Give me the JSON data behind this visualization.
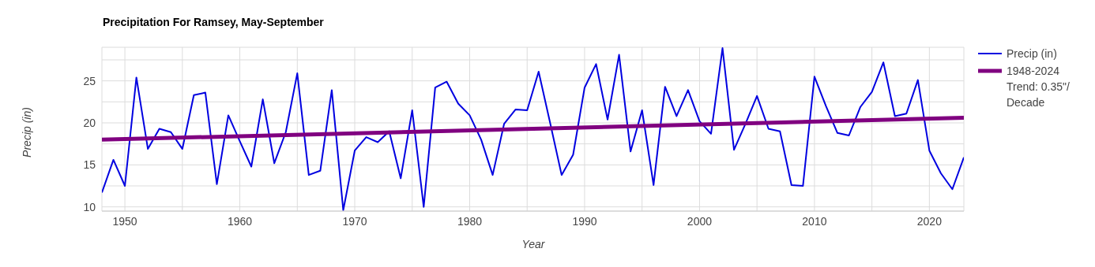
{
  "chart_data": {
    "type": "line",
    "title": "Precipitation For Ramsey, May-September",
    "xlabel": "Year",
    "ylabel": "Precip (in)",
    "x": [
      1948,
      1949,
      1950,
      1951,
      1952,
      1953,
      1954,
      1955,
      1956,
      1957,
      1958,
      1959,
      1960,
      1961,
      1962,
      1963,
      1964,
      1965,
      1966,
      1967,
      1968,
      1969,
      1970,
      1971,
      1972,
      1973,
      1974,
      1975,
      1976,
      1977,
      1978,
      1979,
      1980,
      1981,
      1982,
      1983,
      1984,
      1985,
      1986,
      1987,
      1988,
      1989,
      1990,
      1991,
      1992,
      1993,
      1994,
      1995,
      1996,
      1997,
      1998,
      1999,
      2000,
      2001,
      2002,
      2003,
      2004,
      2005,
      2006,
      2007,
      2008,
      2009,
      2010,
      2011,
      2012,
      2013,
      2014,
      2015,
      2016,
      2017,
      2018,
      2019,
      2020,
      2021,
      2022,
      2023
    ],
    "series": [
      {
        "name": "Precip (in)",
        "color": "#0000e0",
        "values": [
          11.7,
          15.6,
          12.5,
          25.4,
          16.9,
          19.3,
          18.9,
          16.9,
          23.3,
          23.6,
          12.7,
          20.9,
          17.8,
          14.8,
          22.8,
          15.2,
          18.9,
          25.9,
          13.8,
          14.3,
          23.9,
          9.6,
          16.7,
          18.3,
          17.7,
          19.0,
          13.4,
          21.5,
          10.0,
          24.2,
          24.9,
          22.3,
          20.9,
          18.0,
          13.8,
          19.9,
          21.6,
          21.5,
          26.1,
          20.0,
          13.8,
          16.2,
          24.2,
          27.0,
          20.4,
          28.1,
          16.6,
          21.5,
          12.6,
          24.3,
          20.8,
          23.9,
          20.2,
          18.7,
          28.9,
          16.8,
          19.9,
          23.2,
          19.3,
          19.0,
          12.6,
          12.5,
          25.5,
          22.0,
          18.8,
          18.5,
          21.9,
          23.7,
          27.2,
          20.8,
          21.1,
          25.1,
          16.7,
          14.0,
          12.1,
          15.9
        ]
      },
      {
        "name": "1948-2024 Trend: 0.35\"/ Decade",
        "color": "#800080",
        "x": [
          1948,
          2023
        ],
        "values": [
          18.0,
          20.6
        ]
      }
    ],
    "xlim": [
      1948,
      2023
    ],
    "xticks": [
      1950,
      {
        "value": 1955,
        "label": null
      },
      1960,
      {
        "value": 1965,
        "label": null
      },
      1970,
      {
        "value": 1975,
        "label": null
      },
      1980,
      {
        "value": 1985,
        "label": null
      },
      1990,
      {
        "value": 1995,
        "label": null
      },
      2000,
      {
        "value": 2005,
        "label": null
      },
      2010,
      {
        "value": 2015,
        "label": null
      },
      2020
    ],
    "ylim": [
      9.5,
      29
    ],
    "yticks": [
      10,
      {
        "value": 12.5,
        "label": null
      },
      15,
      {
        "value": 17.5,
        "label": null
      },
      20,
      {
        "value": 22.5,
        "label": null
      },
      25,
      {
        "value": 27.5,
        "label": null
      }
    ],
    "grid": true,
    "legend": "top right",
    "marker": "none",
    "line_style": "solid"
  }
}
